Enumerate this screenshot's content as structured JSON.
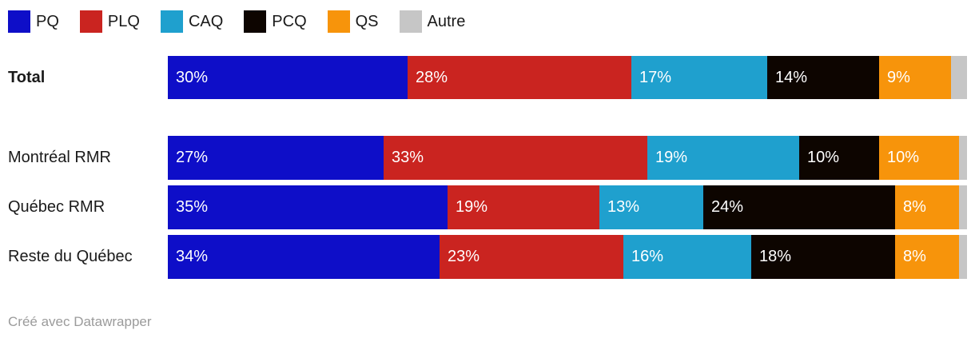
{
  "legend": {
    "items": [
      {
        "label": "PQ",
        "color": "#0e0ec8"
      },
      {
        "label": "PLQ",
        "color": "#ca2420"
      },
      {
        "label": "CAQ",
        "color": "#1fa0ce"
      },
      {
        "label": "PCQ",
        "color": "#0d0500"
      },
      {
        "label": "QS",
        "color": "#f7940b"
      },
      {
        "label": "Autre",
        "color": "#c6c6c6"
      }
    ]
  },
  "chart_data": {
    "type": "bar",
    "stacked": true,
    "orientation": "horizontal",
    "categories": [
      "Total",
      "Montréal RMR",
      "Québec RMR",
      "Reste du Québec"
    ],
    "series": [
      {
        "name": "PQ",
        "color": "#0e0ec8",
        "values": [
          30,
          27,
          35,
          34
        ],
        "show_labels": true
      },
      {
        "name": "PLQ",
        "color": "#ca2420",
        "values": [
          28,
          33,
          19,
          23
        ],
        "show_labels": true
      },
      {
        "name": "CAQ",
        "color": "#1fa0ce",
        "values": [
          17,
          19,
          13,
          16
        ],
        "show_labels": true
      },
      {
        "name": "PCQ",
        "color": "#0d0500",
        "values": [
          14,
          10,
          24,
          18
        ],
        "show_labels": true
      },
      {
        "name": "QS",
        "color": "#f7940b",
        "values": [
          9,
          10,
          8,
          8
        ],
        "show_labels": true
      },
      {
        "name": "Autre",
        "color": "#c6c6c6",
        "values": [
          2,
          1,
          1,
          1
        ],
        "show_labels": false
      }
    ],
    "value_suffix": "%",
    "xlim": [
      0,
      100
    ],
    "grid": false,
    "legend_position": "top"
  },
  "footer": {
    "credit": "Créé avec Datawrapper"
  }
}
